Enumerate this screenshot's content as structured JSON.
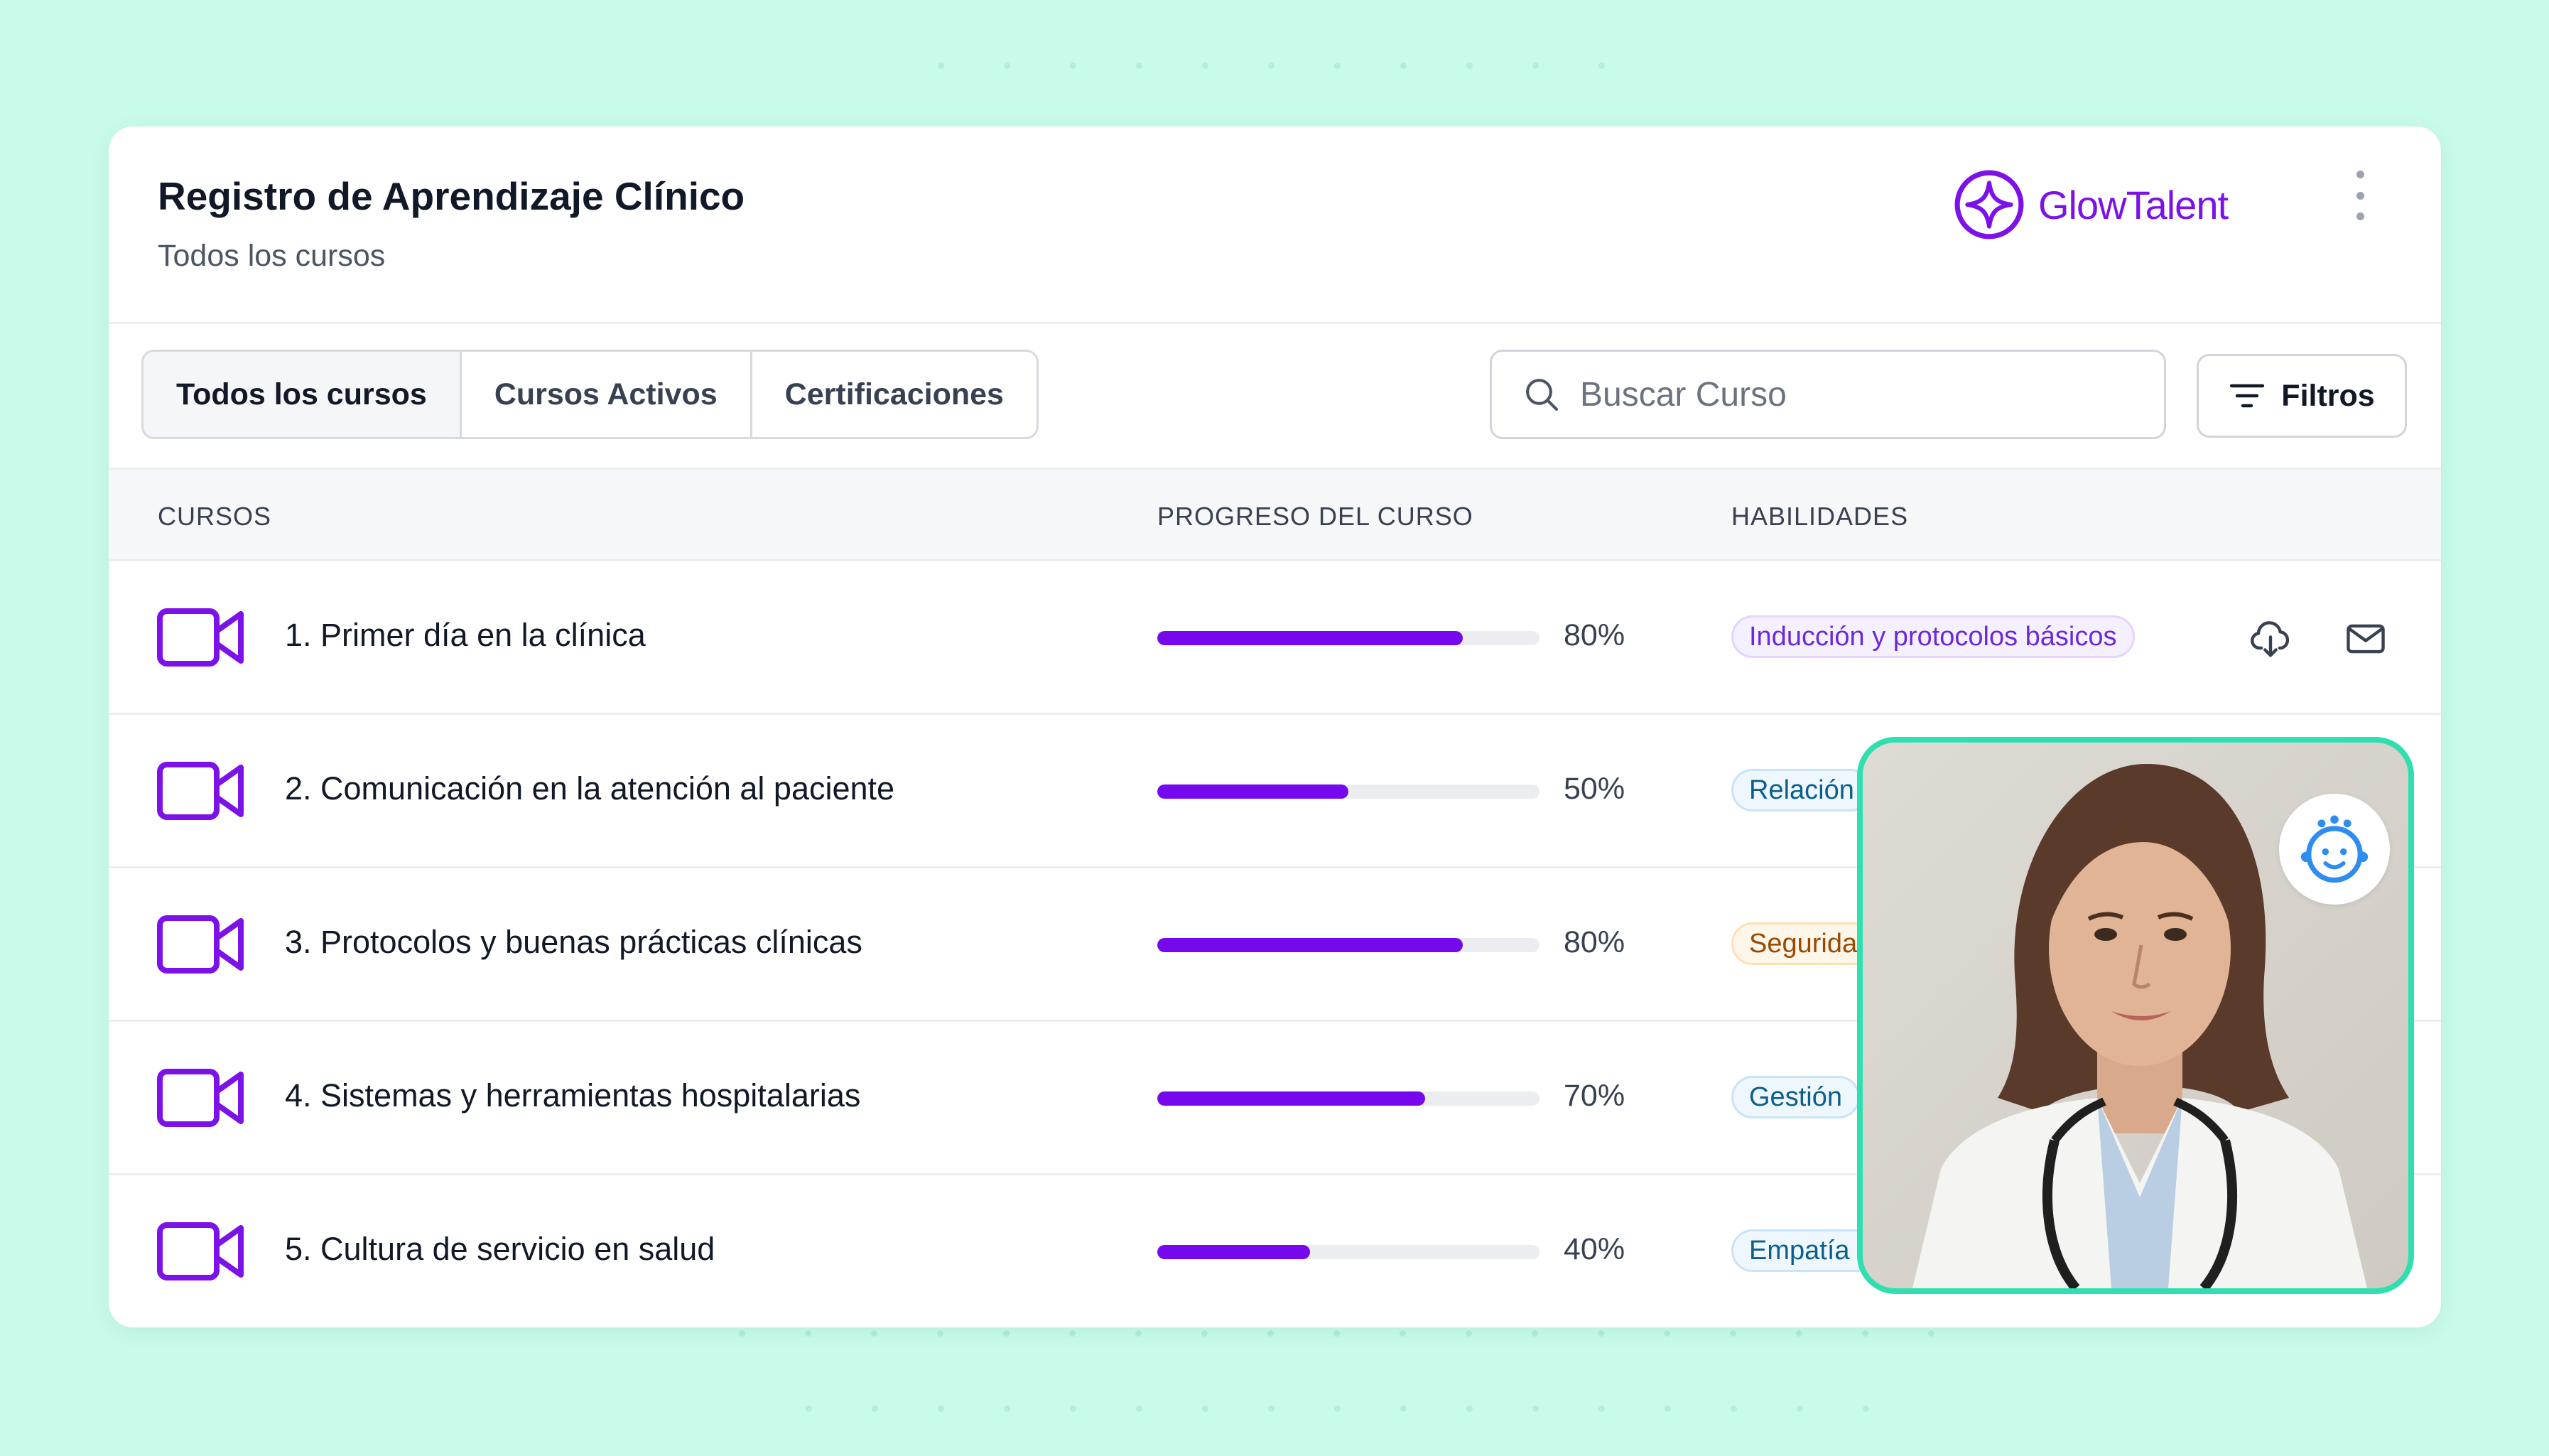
{
  "header": {
    "title": "Registro de Aprendizaje Clínico",
    "subtitle": "Todos los cursos",
    "brand": "GlowTalent",
    "brand_color": "#7c12e8"
  },
  "tabs": [
    {
      "label": "Todos los cursos",
      "active": true
    },
    {
      "label": "Cursos Activos",
      "active": false
    },
    {
      "label": "Certificaciones",
      "active": false
    }
  ],
  "search": {
    "placeholder": "Buscar Curso",
    "value": ""
  },
  "filters_label": "Filtros",
  "table": {
    "columns": [
      "CURSOS",
      "PROGRESO DEL CURSO",
      "HABILIDADES"
    ],
    "rows": [
      {
        "title": "1. Primer día en la clínica",
        "progress": 80,
        "progress_label": "80%",
        "skill": "Inducción y protocolos básicos",
        "skill_color": "purple"
      },
      {
        "title": "2. Comunicación en la atención al paciente",
        "progress": 50,
        "progress_label": "50%",
        "skill": "Relación",
        "skill_color": "blue"
      },
      {
        "title": "3. Protocolos y buenas prácticas clínicas",
        "progress": 80,
        "progress_label": "80%",
        "skill": "Segurida",
        "skill_color": "orange"
      },
      {
        "title": "4. Sistemas y herramientas hospitalarias",
        "progress": 70,
        "progress_label": "70%",
        "skill": "Gestión",
        "skill_color": "blue"
      },
      {
        "title": "5. Cultura de servicio en salud",
        "progress": 40,
        "progress_label": "40%",
        "skill": "Empatía y",
        "skill_color": "blue"
      }
    ]
  },
  "colors": {
    "background": "#c9fbea",
    "accent": "#7608ee",
    "video_border": "#2ee0b0"
  },
  "icons": [
    "search-icon",
    "filter-icon",
    "video-camera-icon",
    "download-icon",
    "mail-icon",
    "more-vertical-icon",
    "brand-star-icon",
    "baby-face-icon"
  ]
}
